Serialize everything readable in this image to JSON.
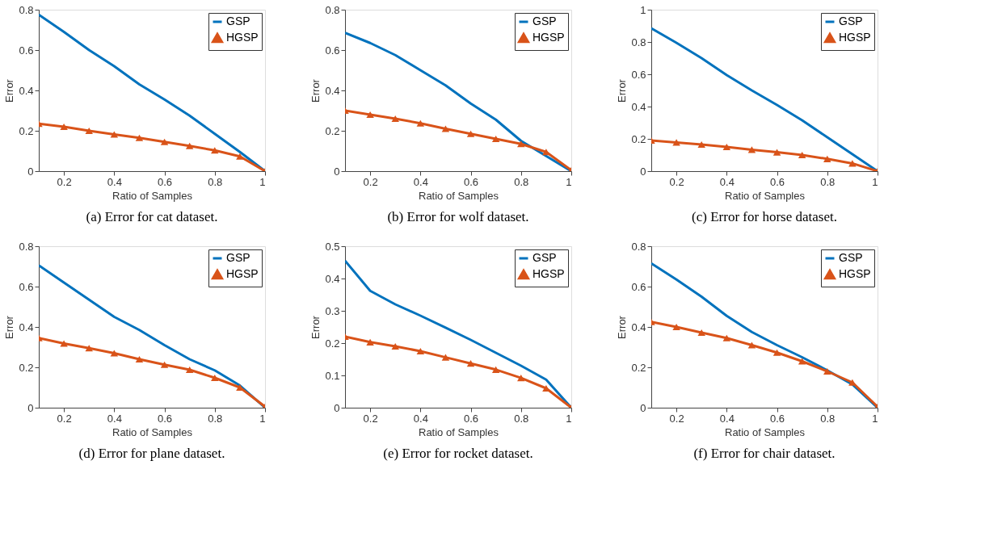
{
  "chart_data": [
    {
      "type": "line",
      "title": "(a) Error for cat dataset.",
      "xlabel": "Ratio of Samples",
      "ylabel": "Error",
      "x": [
        0.1,
        0.2,
        0.3,
        0.4,
        0.5,
        0.6,
        0.7,
        0.8,
        0.9,
        1
      ],
      "xlim": [
        0.1,
        1
      ],
      "xticks": [
        0.2,
        0.4,
        0.6,
        0.8,
        1
      ],
      "ylim": [
        0,
        0.8
      ],
      "yticks": [
        0,
        0.2,
        0.4,
        0.6,
        0.8
      ],
      "grid": false,
      "legend": "top right",
      "series": [
        {
          "name": "GSP",
          "color": "#0072bd",
          "marker": "none",
          "values": [
            0.775,
            0.69,
            0.6,
            0.52,
            0.43,
            0.355,
            0.275,
            0.185,
            0.095,
            0
          ]
        },
        {
          "name": "HGSP",
          "color": "#d95319",
          "marker": "triangle",
          "values": [
            0.235,
            0.22,
            0.2,
            0.182,
            0.165,
            0.145,
            0.125,
            0.103,
            0.073,
            0
          ]
        }
      ]
    },
    {
      "type": "line",
      "title": "(b) Error for wolf dataset.",
      "xlabel": "Ratio of Samples",
      "ylabel": "Error",
      "x": [
        0.1,
        0.2,
        0.3,
        0.4,
        0.5,
        0.6,
        0.7,
        0.8,
        0.9,
        1
      ],
      "xlim": [
        0.1,
        1
      ],
      "xticks": [
        0.2,
        0.4,
        0.6,
        0.8,
        1
      ],
      "ylim": [
        0,
        0.8
      ],
      "yticks": [
        0,
        0.2,
        0.4,
        0.6,
        0.8
      ],
      "grid": false,
      "legend": "top right",
      "series": [
        {
          "name": "GSP",
          "color": "#0072bd",
          "marker": "none",
          "values": [
            0.685,
            0.635,
            0.575,
            0.5,
            0.425,
            0.335,
            0.255,
            0.15,
            0.075,
            0
          ]
        },
        {
          "name": "HGSP",
          "color": "#d95319",
          "marker": "triangle",
          "values": [
            0.3,
            0.28,
            0.26,
            0.237,
            0.21,
            0.185,
            0.16,
            0.135,
            0.095,
            0.005
          ]
        }
      ]
    },
    {
      "type": "line",
      "title": "(c) Error for horse dataset.",
      "xlabel": "Ratio of Samples",
      "ylabel": "Error",
      "x": [
        0.1,
        0.2,
        0.3,
        0.4,
        0.5,
        0.6,
        0.7,
        0.8,
        0.9,
        1
      ],
      "xlim": [
        0.1,
        1
      ],
      "xticks": [
        0.2,
        0.4,
        0.6,
        0.8,
        1
      ],
      "ylim": [
        0,
        1
      ],
      "yticks": [
        0,
        0.2,
        0.4,
        0.6,
        0.8,
        1
      ],
      "grid": false,
      "legend": "top right",
      "series": [
        {
          "name": "GSP",
          "color": "#0072bd",
          "marker": "none",
          "values": [
            0.885,
            0.795,
            0.7,
            0.595,
            0.5,
            0.41,
            0.315,
            0.21,
            0.105,
            0
          ]
        },
        {
          "name": "HGSP",
          "color": "#d95319",
          "marker": "triangle",
          "values": [
            0.19,
            0.178,
            0.165,
            0.15,
            0.133,
            0.117,
            0.1,
            0.076,
            0.048,
            0
          ]
        }
      ]
    },
    {
      "type": "line",
      "title": "(d) Error for plane dataset.",
      "xlabel": "Ratio of Samples",
      "ylabel": "Error",
      "x": [
        0.1,
        0.2,
        0.3,
        0.4,
        0.5,
        0.6,
        0.7,
        0.8,
        0.9,
        1
      ],
      "xlim": [
        0.1,
        1
      ],
      "xticks": [
        0.2,
        0.4,
        0.6,
        0.8,
        1
      ],
      "ylim": [
        0,
        0.8
      ],
      "yticks": [
        0,
        0.2,
        0.4,
        0.6,
        0.8
      ],
      "grid": false,
      "legend": "top right",
      "series": [
        {
          "name": "GSP",
          "color": "#0072bd",
          "marker": "none",
          "values": [
            0.705,
            0.62,
            0.535,
            0.45,
            0.385,
            0.31,
            0.24,
            0.185,
            0.11,
            0
          ]
        },
        {
          "name": "HGSP",
          "color": "#d95319",
          "marker": "triangle",
          "values": [
            0.345,
            0.318,
            0.295,
            0.27,
            0.24,
            0.213,
            0.188,
            0.148,
            0.1,
            0.005
          ]
        }
      ]
    },
    {
      "type": "line",
      "title": "(e) Error for rocket dataset.",
      "xlabel": "Ratio of Samples",
      "ylabel": "Error",
      "x": [
        0.1,
        0.2,
        0.3,
        0.4,
        0.5,
        0.6,
        0.7,
        0.8,
        0.9,
        1
      ],
      "xlim": [
        0.1,
        1
      ],
      "xticks": [
        0.2,
        0.4,
        0.6,
        0.8,
        1
      ],
      "ylim": [
        0,
        0.5
      ],
      "yticks": [
        0,
        0.1,
        0.2,
        0.3,
        0.4,
        0.5
      ],
      "grid": false,
      "legend": "top right",
      "series": [
        {
          "name": "GSP",
          "color": "#0072bd",
          "marker": "none",
          "values": [
            0.455,
            0.362,
            0.32,
            0.285,
            0.248,
            0.21,
            0.17,
            0.13,
            0.087,
            0
          ]
        },
        {
          "name": "HGSP",
          "color": "#d95319",
          "marker": "triangle",
          "values": [
            0.22,
            0.203,
            0.19,
            0.175,
            0.156,
            0.137,
            0.118,
            0.092,
            0.06,
            0
          ]
        }
      ]
    },
    {
      "type": "line",
      "title": "(f) Error for chair dataset.",
      "xlabel": "Ratio of Samples",
      "ylabel": "Error",
      "x": [
        0.1,
        0.2,
        0.3,
        0.4,
        0.5,
        0.6,
        0.7,
        0.8,
        0.9,
        1
      ],
      "xlim": [
        0.1,
        1
      ],
      "xticks": [
        0.2,
        0.4,
        0.6,
        0.8,
        1
      ],
      "ylim": [
        0,
        0.8
      ],
      "yticks": [
        0,
        0.2,
        0.4,
        0.6,
        0.8
      ],
      "grid": false,
      "legend": "top right",
      "series": [
        {
          "name": "GSP",
          "color": "#0072bd",
          "marker": "none",
          "values": [
            0.715,
            0.635,
            0.55,
            0.455,
            0.375,
            0.31,
            0.25,
            0.185,
            0.115,
            0
          ]
        },
        {
          "name": "HGSP",
          "color": "#d95319",
          "marker": "triangle",
          "values": [
            0.425,
            0.4,
            0.372,
            0.345,
            0.31,
            0.273,
            0.23,
            0.18,
            0.125,
            0.005
          ]
        }
      ]
    }
  ]
}
